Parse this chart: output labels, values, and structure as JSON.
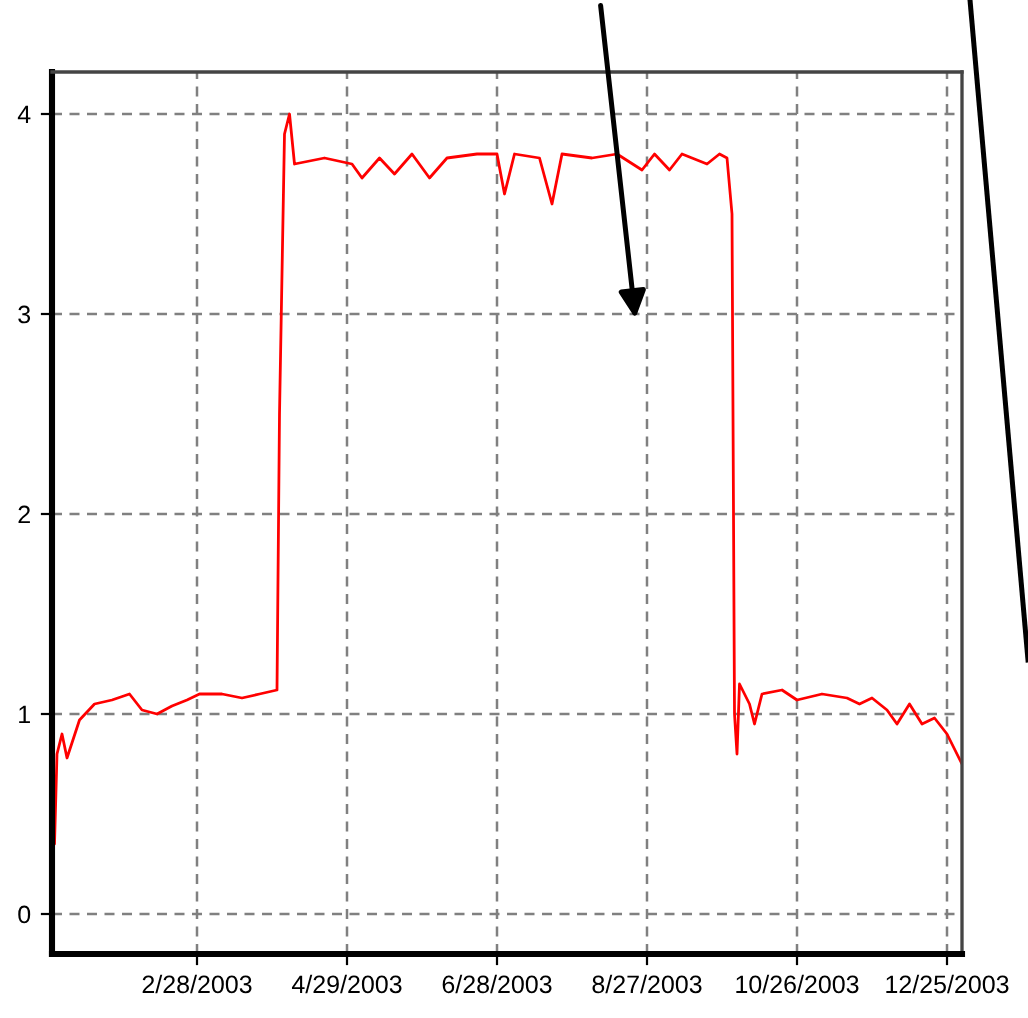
{
  "chart_data": {
    "type": "line",
    "x": [
      "2003-01-01",
      "2003-01-02",
      "2003-01-03",
      "2003-01-05",
      "2003-01-07",
      "2003-01-12",
      "2003-01-18",
      "2003-01-25",
      "2003-02-01",
      "2003-02-06",
      "2003-02-12",
      "2003-02-18",
      "2003-02-24",
      "2003-03-01",
      "2003-03-10",
      "2003-03-18",
      "2003-03-25",
      "2003-04-01",
      "2003-04-02",
      "2003-04-04",
      "2003-04-06",
      "2003-04-08",
      "2003-04-20",
      "2003-05-01",
      "2003-05-05",
      "2003-05-12",
      "2003-05-18",
      "2003-05-25",
      "2003-06-01",
      "2003-06-08",
      "2003-06-20",
      "2003-06-28",
      "2003-07-01",
      "2003-07-05",
      "2003-07-15",
      "2003-07-20",
      "2003-07-24",
      "2003-08-05",
      "2003-08-15",
      "2003-08-25",
      "2003-08-30",
      "2003-09-05",
      "2003-09-10",
      "2003-09-20",
      "2003-09-25",
      "2003-09-28",
      "2003-09-30",
      "2003-10-01",
      "2003-10-02",
      "2003-10-03",
      "2003-10-07",
      "2003-10-09",
      "2003-10-12",
      "2003-10-20",
      "2003-10-26",
      "2003-11-05",
      "2003-11-15",
      "2003-11-20",
      "2003-11-25",
      "2003-12-01",
      "2003-12-05",
      "2003-12-10",
      "2003-12-15",
      "2003-12-20",
      "2003-12-25",
      "2003-12-31"
    ],
    "series": [
      {
        "color": "#ff0000",
        "values": [
          0.8,
          0.35,
          0.8,
          0.9,
          0.78,
          0.97,
          1.05,
          1.07,
          1.1,
          1.02,
          1.0,
          1.04,
          1.07,
          1.1,
          1.1,
          1.08,
          1.1,
          1.12,
          2.5,
          3.9,
          4.0,
          3.75,
          3.78,
          3.75,
          3.68,
          3.78,
          3.7,
          3.8,
          3.68,
          3.78,
          3.8,
          3.8,
          3.6,
          3.8,
          3.78,
          3.55,
          3.8,
          3.78,
          3.8,
          3.72,
          3.8,
          3.72,
          3.8,
          3.75,
          3.8,
          3.78,
          3.5,
          1.0,
          0.8,
          1.15,
          1.05,
          0.95,
          1.1,
          1.12,
          1.07,
          1.1,
          1.08,
          1.05,
          1.08,
          1.02,
          0.95,
          1.05,
          0.95,
          0.98,
          0.9,
          0.75
        ]
      }
    ],
    "xlim": [
      "2003-01-01",
      "2003-12-31"
    ],
    "xticks": [
      {
        "value": "2003-02-28",
        "label": "2/28/2003"
      },
      {
        "value": "2003-04-29",
        "label": "4/29/2003"
      },
      {
        "value": "2003-06-28",
        "label": "6/28/2003"
      },
      {
        "value": "2003-08-27",
        "label": "8/27/2003"
      },
      {
        "value": "2003-10-26",
        "label": "10/26/2003"
      },
      {
        "value": "2003-12-25",
        "label": "12/25/2003"
      }
    ],
    "ylim": [
      -0.2,
      4.21
    ],
    "yticks": [
      0,
      1,
      2,
      3,
      4
    ],
    "grid": true,
    "marker": "none",
    "line_style": "solid"
  }
}
